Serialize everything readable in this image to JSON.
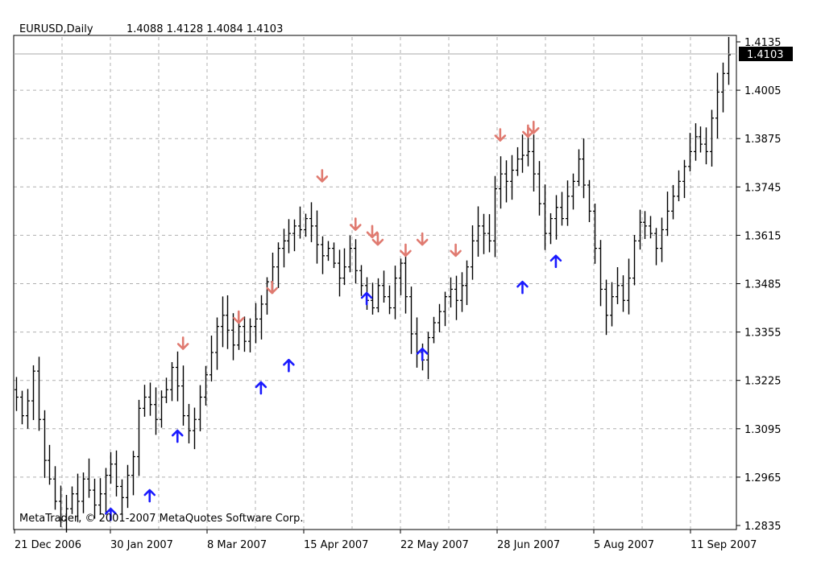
{
  "header": {
    "symbol": "EURUSD,Daily",
    "ohlc": "1.4088 1.4128 1.4084 1.4103"
  },
  "copyright": "MetaTrader, © 2001-2007 MetaQuotes Software Corp.",
  "colors": {
    "bars": "#000000",
    "up_arrow": "#1a1aff",
    "down_arrow": "#e07a70",
    "grid": "#b0b0b0",
    "price_tag_bg": "#000000",
    "price_tag_text": "#ffffff"
  },
  "chart_data": {
    "type": "ohlc",
    "y_ticks": [
      "1.4135",
      "1.4005",
      "1.3875",
      "1.3745",
      "1.3615",
      "1.3485",
      "1.3355",
      "1.3225",
      "1.3095",
      "1.2965",
      "1.2835"
    ],
    "x_ticks": [
      "21 Dec 2006",
      "30 Jan 2007",
      "8 Mar 2007",
      "15 Apr 2007",
      "22 May 2007",
      "28 Jun 2007",
      "5 Aug 2007",
      "11 Sep 2007"
    ],
    "ylim": [
      1.2835,
      1.4135
    ],
    "current_price": "1.4103",
    "grid": true,
    "path": [
      1.318,
      1.313,
      1.317,
      1.325,
      1.312,
      1.301,
      1.296,
      1.29,
      1.285,
      1.288,
      1.292,
      1.29,
      1.296,
      1.293,
      1.289,
      1.292,
      1.297,
      1.3,
      1.294,
      1.291,
      1.297,
      1.302,
      1.315,
      1.318,
      1.316,
      1.312,
      1.318,
      1.32,
      1.326,
      1.321,
      1.313,
      1.309,
      1.312,
      1.318,
      1.324,
      1.33,
      1.337,
      1.34,
      1.336,
      1.332,
      1.337,
      1.333,
      1.337,
      1.339,
      1.343,
      1.349,
      1.353,
      1.358,
      1.36,
      1.362,
      1.364,
      1.363,
      1.366,
      1.364,
      1.359,
      1.356,
      1.358,
      1.354,
      1.35,
      1.353,
      1.358,
      1.352,
      1.348,
      1.344,
      1.342,
      1.348,
      1.345,
      1.342,
      1.35,
      1.354,
      1.345,
      1.335,
      1.33,
      1.328,
      1.334,
      1.338,
      1.341,
      1.345,
      1.347,
      1.344,
      1.348,
      1.353,
      1.36,
      1.364,
      1.362,
      1.36,
      1.374,
      1.378,
      1.376,
      1.379,
      1.382,
      1.383,
      1.384,
      1.378,
      1.37,
      1.362,
      1.366,
      1.369,
      1.366,
      1.372,
      1.376,
      1.382,
      1.375,
      1.368,
      1.358,
      1.347,
      1.34,
      1.345,
      1.348,
      1.344,
      1.35,
      1.36,
      1.365,
      1.364,
      1.362,
      1.358,
      1.363,
      1.368,
      1.372,
      1.376,
      1.38,
      1.384,
      1.388,
      1.386,
      1.384,
      1.393,
      1.4,
      1.405,
      1.41
    ],
    "up_arrows": [
      [
        17,
        1.2865
      ],
      [
        24,
        1.2915
      ],
      [
        29,
        1.3075
      ],
      [
        44,
        1.3205
      ],
      [
        49,
        1.3265
      ],
      [
        63,
        1.3445
      ],
      [
        73,
        1.3295
      ],
      [
        91,
        1.3475
      ],
      [
        97,
        1.3545
      ]
    ],
    "down_arrows": [
      [
        30,
        1.3325
      ],
      [
        40,
        1.3395
      ],
      [
        46,
        1.3475
      ],
      [
        55,
        1.3775
      ],
      [
        61,
        1.3645
      ],
      [
        64,
        1.3625
      ],
      [
        65,
        1.3605
      ],
      [
        70,
        1.3575
      ],
      [
        73,
        1.3605
      ],
      [
        79,
        1.3575
      ],
      [
        87,
        1.3885
      ],
      [
        92,
        1.3895
      ],
      [
        93,
        1.3905
      ]
    ]
  }
}
